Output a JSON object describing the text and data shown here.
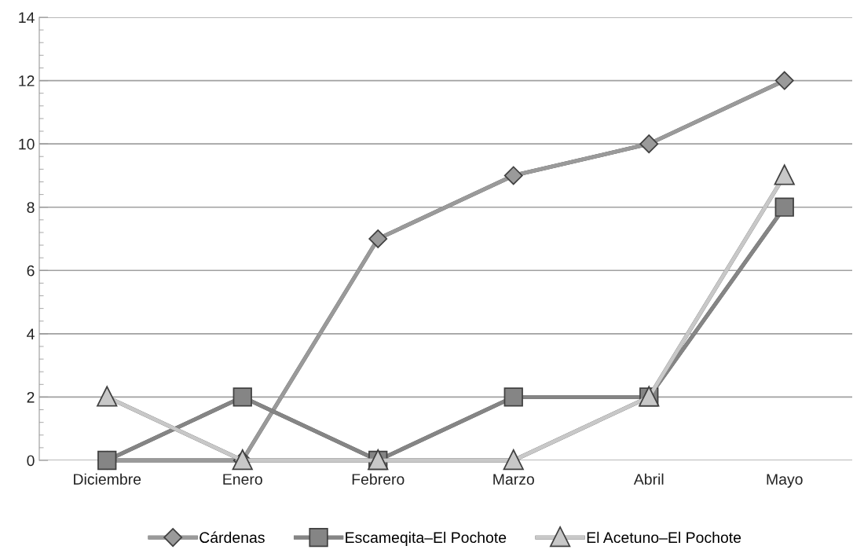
{
  "chart_data": {
    "type": "line",
    "categories": [
      "Diciembre",
      "Enero",
      "Febrero",
      "Marzo",
      "Abril",
      "Mayo"
    ],
    "series": [
      {
        "name": "Cárdenas",
        "color": "#9a9a9a",
        "marker": "diamond",
        "values": [
          0,
          0,
          7,
          9,
          10,
          12
        ]
      },
      {
        "name": "Escameqita–El Pochote",
        "color": "#858585",
        "marker": "square",
        "values": [
          0,
          2,
          0,
          2,
          2,
          8
        ]
      },
      {
        "name": "El Acetuno–El Pochote",
        "color": "#c8c8c8",
        "marker": "triangle",
        "values": [
          2,
          0,
          0,
          0,
          2,
          9
        ]
      }
    ],
    "ylim": [
      0,
      14
    ],
    "yticks": [
      0,
      2,
      4,
      6,
      8,
      10,
      12,
      14
    ],
    "grid": "y",
    "legend": "bottom",
    "line_style": "solid"
  }
}
